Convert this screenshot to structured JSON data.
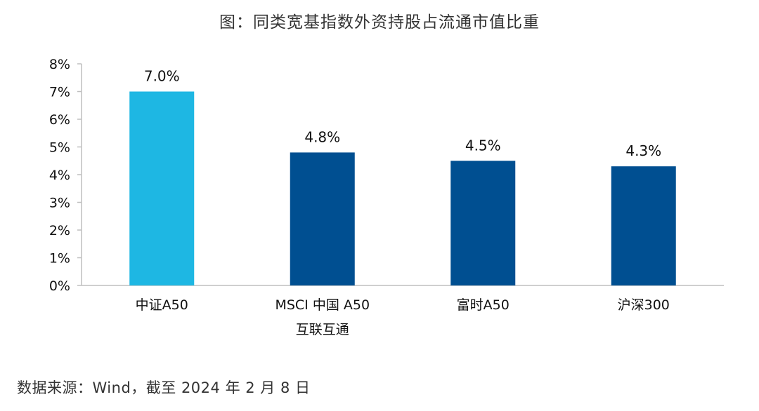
{
  "chart_data": {
    "type": "bar",
    "title": "图：同类宽基指数外资持股占流通市值比重",
    "categories": [
      [
        "中证A50"
      ],
      [
        "MSCI 中国 A50",
        "互联互通"
      ],
      [
        "富时A50"
      ],
      [
        "沪深300"
      ]
    ],
    "values": [
      7.0,
      4.8,
      4.5,
      4.3
    ],
    "value_labels": [
      "7.0%",
      "4.8%",
      "4.5%",
      "4.3%"
    ],
    "bar_colors": [
      "#1EB7E3",
      "#004F91",
      "#004F91",
      "#004F91"
    ],
    "ylim": [
      0,
      8
    ],
    "yticks": [
      0,
      1,
      2,
      3,
      4,
      5,
      6,
      7,
      8
    ],
    "ytick_labels": [
      "0%",
      "1%",
      "2%",
      "3%",
      "4%",
      "5%",
      "6%",
      "7%",
      "8%"
    ],
    "grid": false,
    "legend": "none"
  },
  "source": "数据来源：Wind，截至 2024 年 2 月 8 日",
  "colors": {
    "axis": "#BFBFBF",
    "highlight_bar": "#1EB7E3",
    "bar": "#004F91"
  }
}
